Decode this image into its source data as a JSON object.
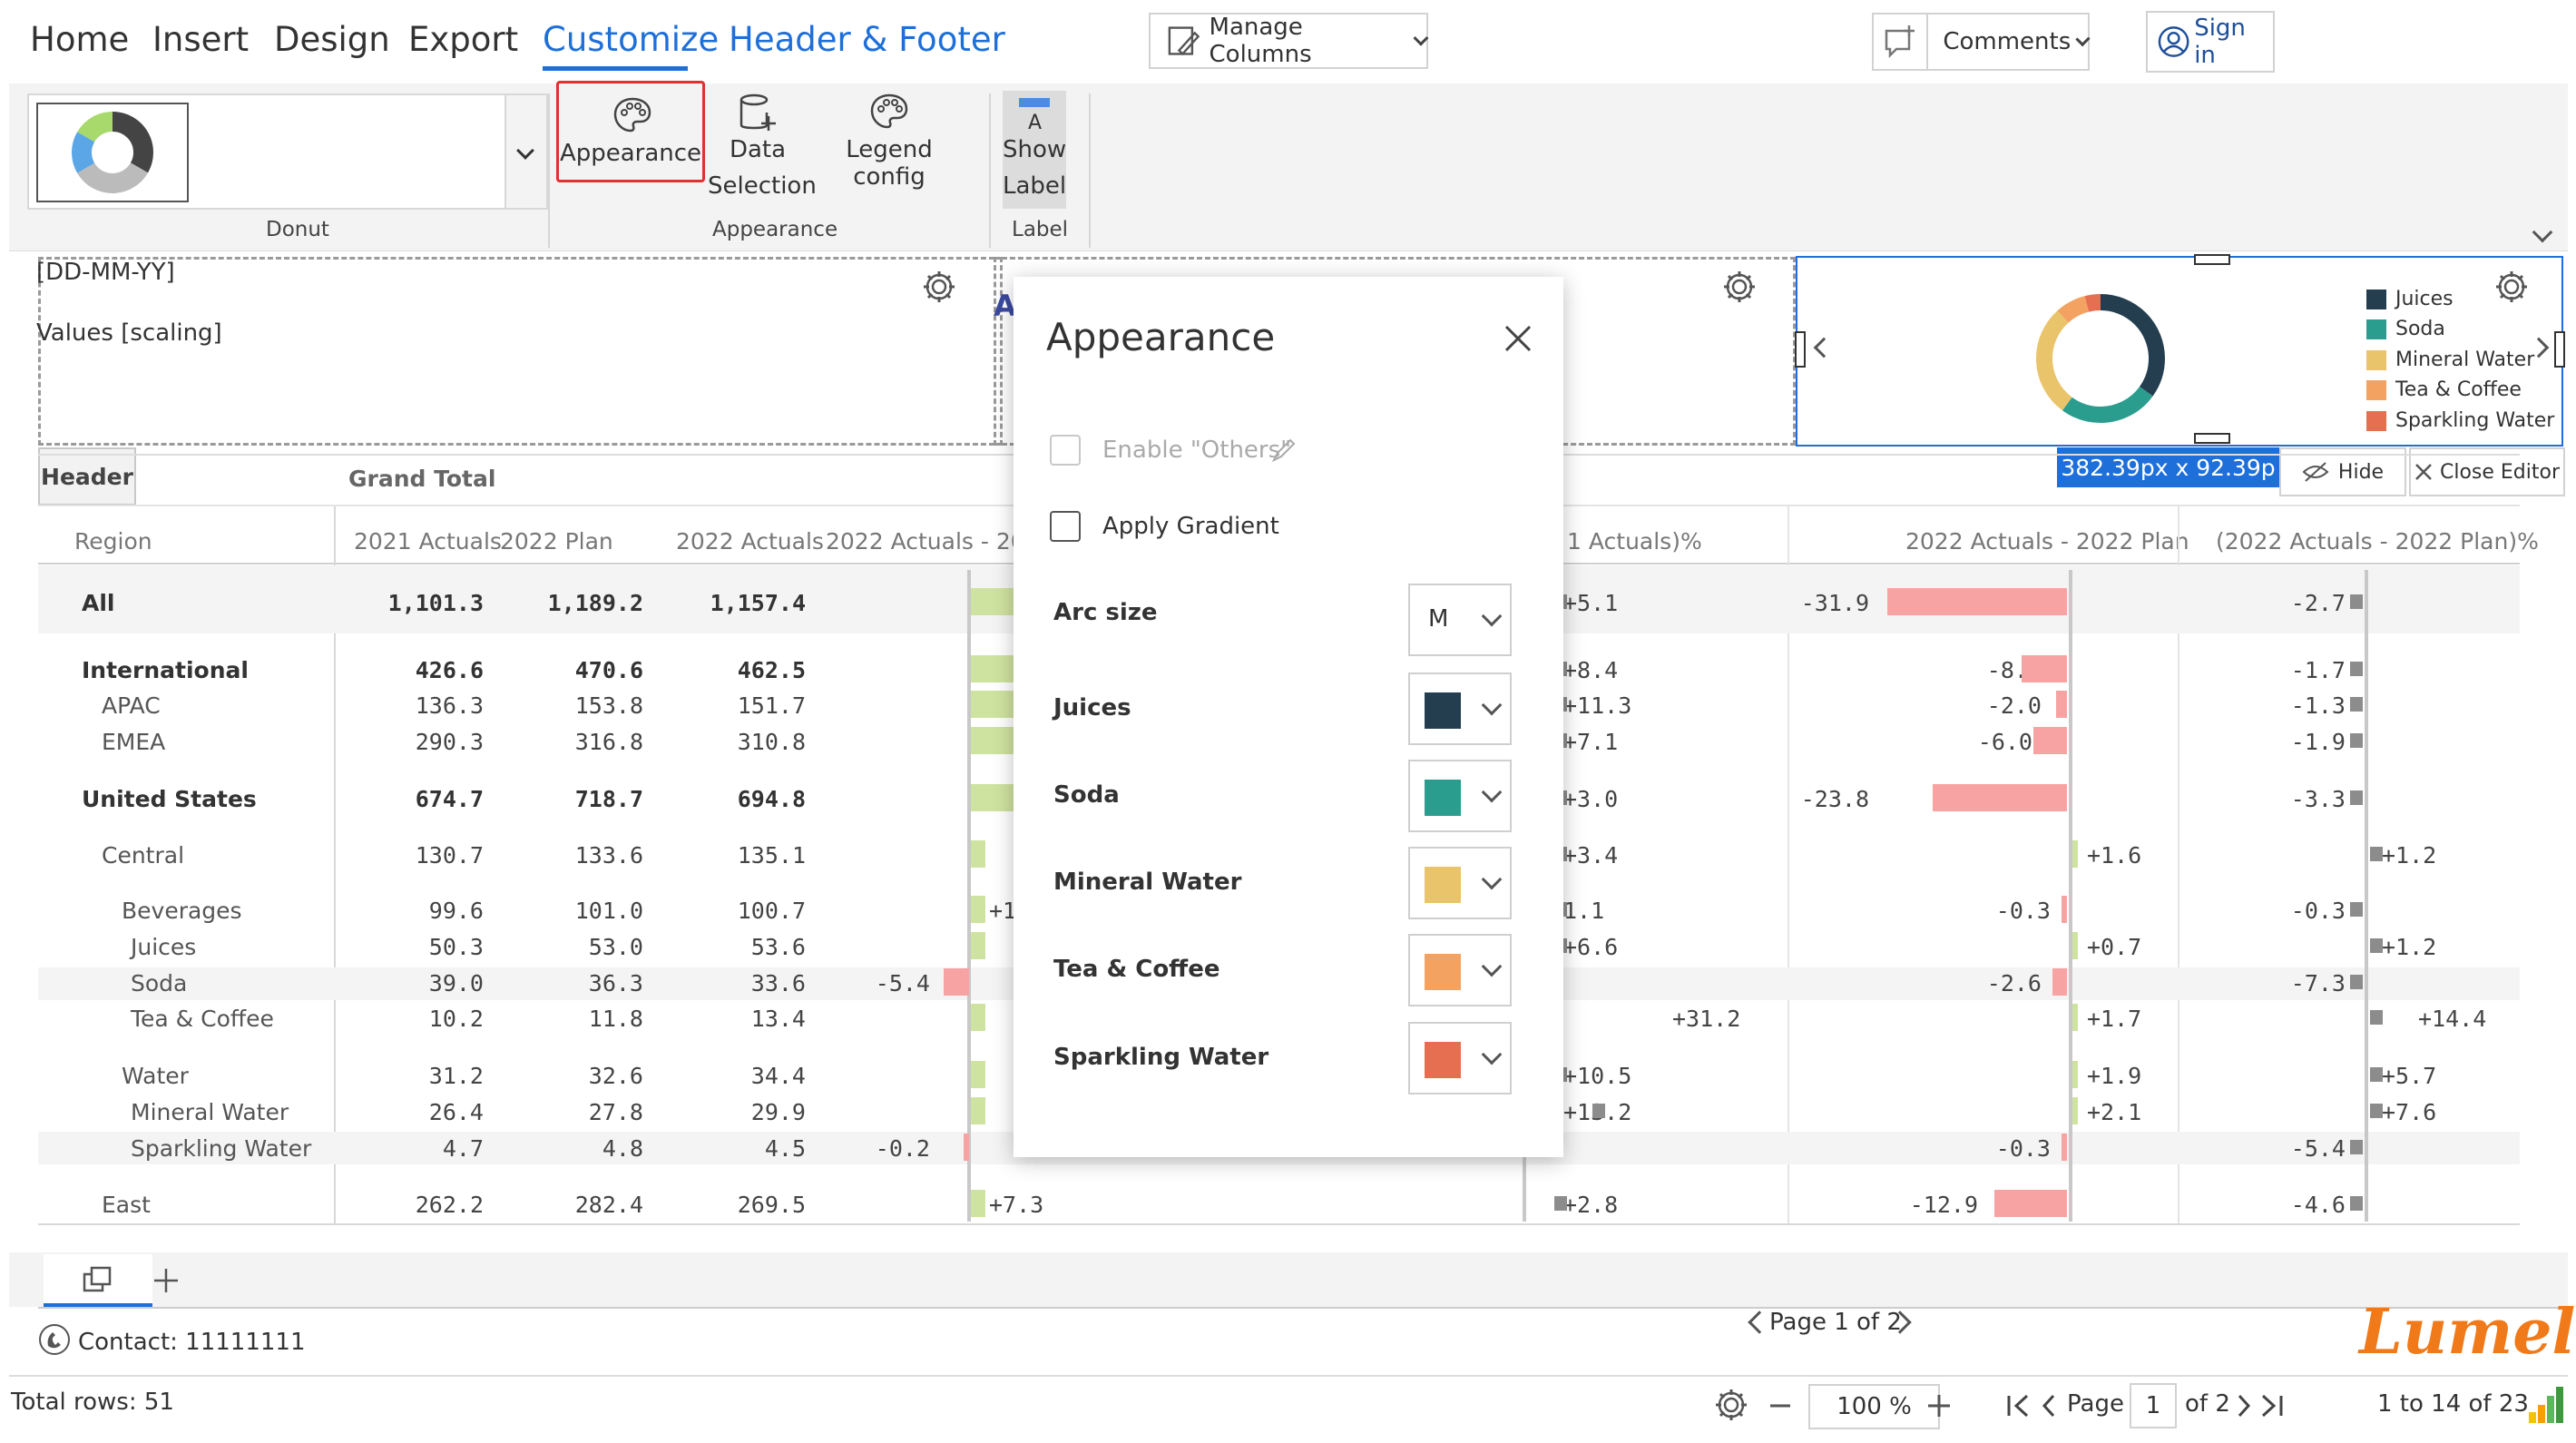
{
  "tabs": [
    "Home",
    "Insert",
    "Design",
    "Export",
    "Customize",
    "Header & Footer"
  ],
  "top_buttons": {
    "manage_columns": "Manage Columns",
    "comments": "Comments",
    "sign_in": "Sign in"
  },
  "ribbon": {
    "chart_type_label": "Donut",
    "appearance_btn": "Appearance",
    "data_selection_line1": "Data",
    "data_selection_line2": "Selection",
    "legend_config": "Legend config",
    "show_label_line1": "Show",
    "show_label_line2": "Label",
    "group_appearance": "Appearance",
    "group_label": "Label"
  },
  "widget1": {
    "line1": "[DD-MM-YY]",
    "line2": "Values [scaling]"
  },
  "widget2_letter": "A",
  "size_badge": "382.39px x 92.39p",
  "hide_btn": "Hide",
  "close_editor_btn": "Close Editor",
  "legend": [
    {
      "label": "Juices",
      "color": "#243e4f"
    },
    {
      "label": "Soda",
      "color": "#2a9d8f"
    },
    {
      "label": "Mineral Water",
      "color": "#e9c46a"
    },
    {
      "label": "Tea & Coffee",
      "color": "#f4a261"
    },
    {
      "label": "Sparkling Water",
      "color": "#e76f51"
    }
  ],
  "table": {
    "header_btn": "Header",
    "grand_total": "Grand Total",
    "columns": [
      "Region",
      "2021 Actuals",
      "2022 Plan",
      "2022 Actuals",
      "2022 Actuals - 20",
      "1 Actuals)%",
      "2022 Actuals - 2022 Plan",
      "(2022 Actuals - 2022 Plan)%"
    ],
    "rows": [
      {
        "label": "All",
        "v": [
          "1,101.3",
          "1,189.2",
          "1,157.4"
        ],
        "d1": "",
        "d2": "+5.1",
        "d3": "-31.9",
        "d4": "-2.7"
      },
      {
        "label": "International",
        "v": [
          "426.6",
          "470.6",
          "462.5"
        ],
        "d1": "",
        "d2": "+8.4",
        "d3": "-8.0",
        "d4": "-1.7"
      },
      {
        "label": "APAC",
        "v": [
          "136.3",
          "153.8",
          "151.7"
        ],
        "d1": "",
        "d2": "+11.3",
        "d3": "-2.0",
        "d4": "-1.3"
      },
      {
        "label": "EMEA",
        "v": [
          "290.3",
          "316.8",
          "310.8"
        ],
        "d1": "",
        "d2": "+7.1",
        "d3": "-6.0",
        "d4": "-1.9"
      },
      {
        "label": "United States",
        "v": [
          "674.7",
          "718.7",
          "694.8"
        ],
        "d1": "",
        "d2": "+3.0",
        "d3": "-23.8",
        "d4": "-3.3"
      },
      {
        "label": "Central",
        "v": [
          "130.7",
          "133.6",
          "135.1"
        ],
        "d1": "",
        "d2": "+3.4",
        "d3": "+1.6",
        "d4": "+1.2"
      },
      {
        "label": "Beverages",
        "v": [
          "99.6",
          "101.0",
          "100.7"
        ],
        "d1": "+1",
        "d2": "1.1",
        "d3": "-0.3",
        "d4": "-0.3"
      },
      {
        "label": "Juices",
        "v": [
          "50.3",
          "53.0",
          "53.6"
        ],
        "d1": "",
        "d2": "+6.6",
        "d3": "+0.7",
        "d4": "+1.2"
      },
      {
        "label": "Soda",
        "v": [
          "39.0",
          "36.3",
          "33.6"
        ],
        "d1": "-5.4",
        "d2": "",
        "d3": "-2.6",
        "d4": "-7.3"
      },
      {
        "label": "Tea & Coffee",
        "v": [
          "10.2",
          "11.8",
          "13.4"
        ],
        "d1": "",
        "d2": "+31.2",
        "d3": "+1.7",
        "d4": "+14.4"
      },
      {
        "label": "Water",
        "v": [
          "31.2",
          "32.6",
          "34.4"
        ],
        "d1": "",
        "d2": "+10.5",
        "d3": "+1.9",
        "d4": "+5.7"
      },
      {
        "label": "Mineral Water",
        "v": [
          "26.4",
          "27.8",
          "29.9"
        ],
        "d1": "",
        "d2": "+13.2",
        "d3": "+2.1",
        "d4": "+7.6"
      },
      {
        "label": "Sparkling Water",
        "v": [
          "4.7",
          "4.8",
          "4.5"
        ],
        "d1": "-0.2",
        "d2": "",
        "d3": "-0.3",
        "d4": "-5.4"
      },
      {
        "label": "East",
        "v": [
          "262.2",
          "282.4",
          "269.5"
        ],
        "d1": "+7.3",
        "d2": "+2.8",
        "d3": "-12.9",
        "d4": "-4.6"
      }
    ]
  },
  "panel": {
    "title": "Appearance",
    "enable_others": "Enable \"Others\"",
    "apply_gradient": "Apply Gradient",
    "arc_size_label": "Arc size",
    "arc_size_value": "M",
    "series": [
      {
        "label": "Juices",
        "color": "#243e4f"
      },
      {
        "label": "Soda",
        "color": "#2a9d8f"
      },
      {
        "label": "Mineral Water",
        "color": "#e9c46a"
      },
      {
        "label": "Tea & Coffee",
        "color": "#f4a261"
      },
      {
        "label": "Sparkling Water",
        "color": "#e76f51"
      }
    ]
  },
  "footer": {
    "page_indicator": "Page 1 of 2",
    "contact": "Contact: 11111111",
    "logo": "Lumel",
    "total_rows": "Total rows: 51",
    "zoom": "100 %",
    "page_label": "Page",
    "page_input": "1",
    "of_pages": "of 2",
    "range": "1 to 14 of 23"
  }
}
